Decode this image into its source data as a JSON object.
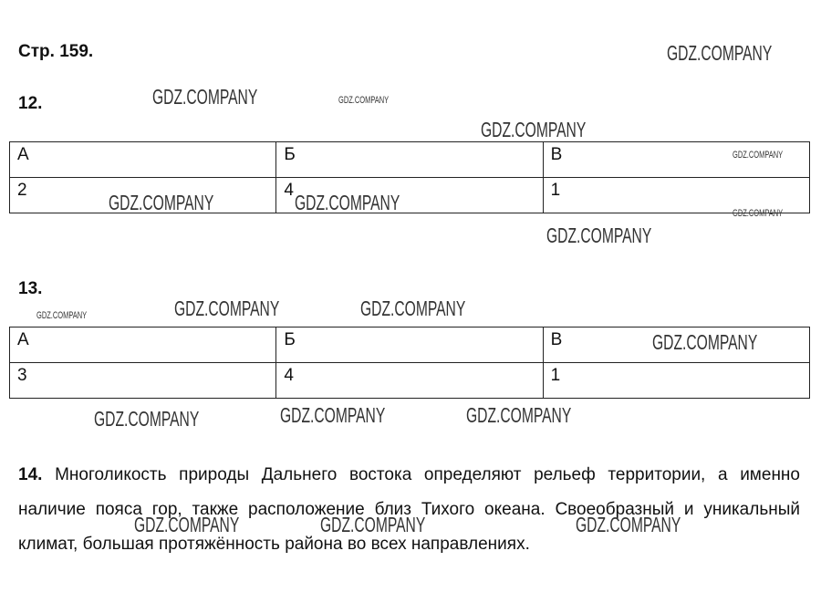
{
  "page_header": "Стр. 159.",
  "watermark": "GDZ.COMPANY",
  "task12": {
    "number": "12.",
    "headers": [
      "А",
      "Б",
      "В"
    ],
    "values": [
      "2",
      "4",
      "1"
    ]
  },
  "task13": {
    "number": "13.",
    "headers": [
      "А",
      "Б",
      "В"
    ],
    "values": [
      "3",
      "4",
      "1"
    ]
  },
  "task14": {
    "number": "14.",
    "text": "Многоликость природы Дальнего востока определяют рельеф территории, а именно наличие пояса гор, также расположение близ Тихого океана. Своеобразный и уникальный климат, большая протяжённость района во всех направлениях."
  }
}
